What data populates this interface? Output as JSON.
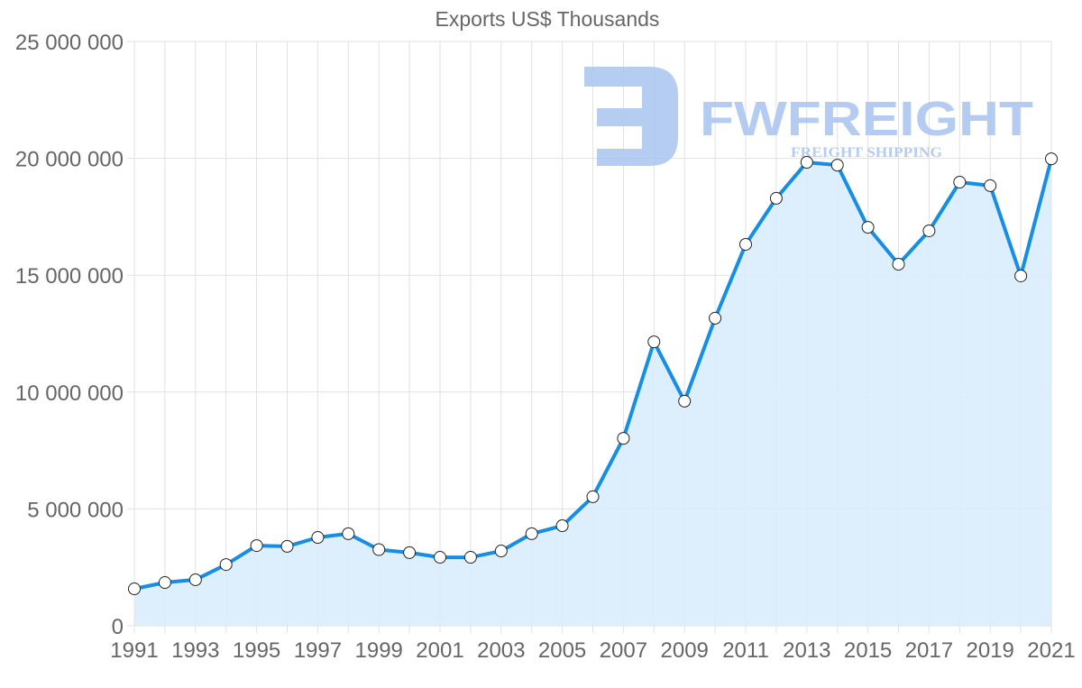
{
  "chart_data": {
    "type": "area",
    "title": "Exports US$ Thousands",
    "xlabel": "",
    "ylabel": "",
    "x": [
      1991,
      1992,
      1993,
      1994,
      1995,
      1996,
      1997,
      1998,
      1999,
      2000,
      2001,
      2002,
      2003,
      2004,
      2005,
      2006,
      2007,
      2008,
      2009,
      2010,
      2011,
      2012,
      2013,
      2014,
      2015,
      2016,
      2017,
      2018,
      2019,
      2020,
      2021
    ],
    "series": [
      {
        "name": "Exports US$ Thousands",
        "values": [
          1580000,
          1850000,
          1970000,
          2620000,
          3430000,
          3400000,
          3780000,
          3940000,
          3260000,
          3130000,
          2930000,
          2930000,
          3200000,
          3940000,
          4280000,
          5520000,
          8020000,
          12150000,
          9610000,
          13160000,
          16320000,
          18290000,
          19830000,
          19710000,
          17050000,
          15470000,
          16900000,
          18980000,
          18830000,
          14970000,
          19980000
        ],
        "color": "#168ee6",
        "fill": "#d9ecfc"
      }
    ],
    "ylim": [
      0,
      25000000
    ],
    "yticks": [
      "0",
      "5 000 000",
      "10 000 000",
      "15 000 000",
      "20 000 000",
      "25 000 000"
    ],
    "xticks": [
      "1991",
      "1993",
      "1995",
      "1997",
      "1999",
      "2001",
      "2003",
      "2005",
      "2007",
      "2009",
      "2011",
      "2013",
      "2015",
      "2017",
      "2019",
      "2021"
    ],
    "grid": true,
    "legend": "none"
  },
  "watermark": {
    "brand": "FWFREIGHT",
    "tagline": "FREIGHT SHIPPING",
    "color": "#a9c4f0"
  }
}
